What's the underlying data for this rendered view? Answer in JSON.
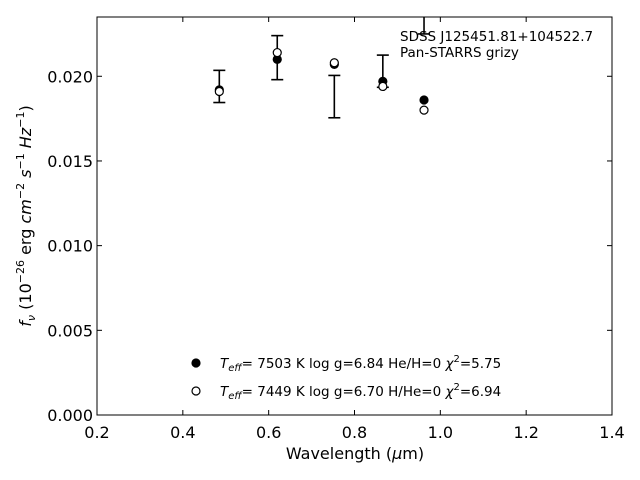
{
  "chart_data": {
    "type": "scatter",
    "title": "",
    "annotation_lines": [
      "SDSS J125451.81+104522.7",
      "Pan-STARRS grizy"
    ],
    "xlabel": "Wavelength (μm)",
    "ylabel": "f_ν (10^-26 erg cm^-2 s^-1 Hz^-1)",
    "xlim": [
      0.2,
      1.4
    ],
    "ylim": [
      0.0,
      0.0235
    ],
    "x_ticks": [
      0.2,
      0.4,
      0.6,
      0.8,
      1.0,
      1.2,
      1.4
    ],
    "x_tick_labels": [
      "0.2",
      "0.4",
      "0.6",
      "0.8",
      "1.0",
      "1.2",
      "1.4"
    ],
    "y_ticks": [
      0.0,
      0.005,
      0.01,
      0.015,
      0.02
    ],
    "y_tick_labels": [
      "0.000",
      "0.005",
      "0.010",
      "0.015",
      "0.020"
    ],
    "grid": false,
    "observed": {
      "marker": "errorbar",
      "points": [
        {
          "x": 0.485,
          "y": 0.0194,
          "err": 0.00095
        },
        {
          "x": 0.62,
          "y": 0.0211,
          "err": 0.0013
        },
        {
          "x": 0.753,
          "y": 0.0188,
          "err": 0.00125
        },
        {
          "x": 0.866,
          "y": 0.0203,
          "err": 0.00095
        },
        {
          "x": 0.962,
          "y": 0.025,
          "err": 0.0025
        }
      ]
    },
    "series": [
      {
        "marker": "filled-circle",
        "legend_text": "T_eff=  7503 K  log g=6.84  He/H=0  χ²=5.75",
        "x": [
          0.485,
          0.62,
          0.753,
          0.866,
          0.962
        ],
        "y": [
          0.0192,
          0.021,
          0.0207,
          0.0197,
          0.0186
        ]
      },
      {
        "marker": "open-circle",
        "legend_text": "T_eff=  7449 K  log g=6.70  H/He=0  χ²=6.94",
        "x": [
          0.485,
          0.62,
          0.753,
          0.866,
          0.962
        ],
        "y": [
          0.0191,
          0.0214,
          0.0208,
          0.0194,
          0.018
        ]
      }
    ],
    "legend_position": "lower-center"
  }
}
